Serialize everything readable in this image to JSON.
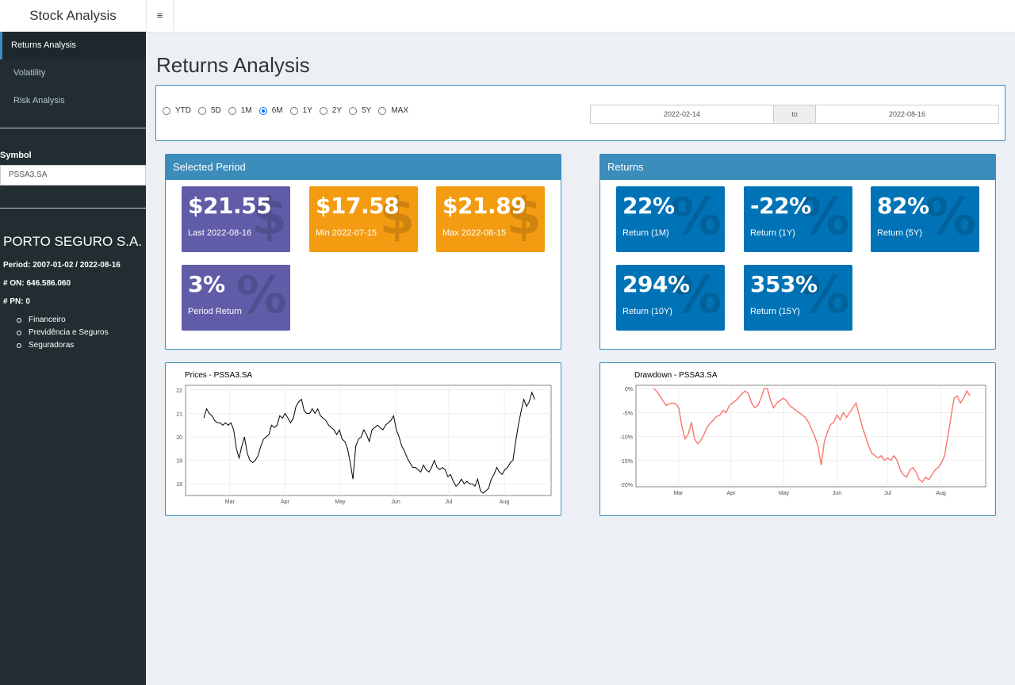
{
  "header": {
    "title": "Stock Analysis",
    "menu_icon": "≡"
  },
  "sidebar": {
    "items": [
      {
        "label": "Returns Analysis",
        "active": true
      },
      {
        "label": "Volatility",
        "active": false
      },
      {
        "label": "Risk Analysis",
        "active": false
      }
    ],
    "symbol_label": "Symbol",
    "symbol_value": "PSSA3.SA",
    "company": "PORTO SEGURO S.A.",
    "period": "Period: 2007-01-02 / 2022-08-16",
    "on": "# ON: 646.586.060",
    "pn": "# PN: 0",
    "sectors": [
      "Financeiro",
      "Previdência e Seguros",
      "Seguradoras"
    ]
  },
  "page_title": "Returns Analysis",
  "filters": {
    "periods": [
      "YTD",
      "5D",
      "1M",
      "6M",
      "1Y",
      "2Y",
      "5Y",
      "MAX"
    ],
    "selected": "6M",
    "date_start": "2022-02-14",
    "date_sep": "to",
    "date_end": "2022-08-16"
  },
  "selected_period": {
    "title": "Selected Period",
    "boxes": [
      {
        "value": "$21.55",
        "label": "Last 2022-08-16",
        "color": "#605ca8",
        "icon": "dollar-icon"
      },
      {
        "value": "$17.58",
        "label": "Min 2022-07-15",
        "color": "#f39c12",
        "icon": "dollar-icon"
      },
      {
        "value": "$21.89",
        "label": "Max 2022-08-15",
        "color": "#f39c12",
        "icon": "dollar-icon"
      },
      {
        "value": "3%",
        "label": "Period Return",
        "color": "#605ca8",
        "icon": "percent-icon"
      }
    ]
  },
  "returns": {
    "title": "Returns",
    "boxes": [
      {
        "value": "22%",
        "label": "Return (1M)",
        "color": "#0073b7",
        "icon": "percent-icon"
      },
      {
        "value": "-22%",
        "label": "Return (1Y)",
        "color": "#0073b7",
        "icon": "percent-icon"
      },
      {
        "value": "82%",
        "label": "Return (5Y)",
        "color": "#0073b7",
        "icon": "percent-icon"
      },
      {
        "value": "294%",
        "label": "Return (10Y)",
        "color": "#0073b7",
        "icon": "percent-icon"
      },
      {
        "value": "353%",
        "label": "Return (15Y)",
        "color": "#0073b7",
        "icon": "percent-icon"
      }
    ]
  },
  "chart_data": [
    {
      "type": "line",
      "title": "Prices - PSSA3.SA",
      "xlabel": "",
      "ylabel": "",
      "x_ticks": [
        "Mar",
        "Apr",
        "May",
        "Jun",
        "Jul",
        "Aug"
      ],
      "y_ticks": [
        "18",
        "19",
        "20",
        "21",
        "22"
      ],
      "ylim": [
        17.5,
        22.2
      ],
      "color": "#000000",
      "series": [
        {
          "values": [
            20.8,
            21.2,
            21.0,
            20.9,
            20.7,
            20.6,
            20.6,
            20.5,
            20.6,
            20.5,
            20.6,
            20.3,
            19.5,
            19.1,
            19.6,
            20.0,
            19.3,
            19.0,
            18.9,
            19.0,
            19.2,
            19.6,
            19.9,
            20.0,
            20.1,
            20.5,
            20.4,
            20.5,
            20.9,
            20.8,
            21.0,
            20.8,
            20.6,
            20.8,
            21.3,
            21.5,
            21.6,
            21.1,
            21.0,
            21.0,
            21.2,
            21.0,
            21.2,
            20.9,
            20.8,
            20.7,
            20.5,
            20.4,
            20.3,
            20.1,
            20.3,
            19.9,
            19.8,
            19.5,
            18.9,
            18.2,
            19.6,
            19.9,
            20.0,
            20.3,
            20.1,
            19.8,
            20.3,
            20.4,
            20.5,
            20.4,
            20.3,
            20.5,
            20.6,
            20.7,
            20.9,
            20.3,
            20.0,
            19.6,
            19.4,
            19.1,
            18.9,
            18.7,
            18.7,
            18.6,
            18.5,
            18.8,
            18.6,
            18.5,
            18.7,
            19.0,
            18.7,
            18.6,
            18.7,
            18.6,
            18.3,
            18.4,
            18.1,
            17.9,
            18.0,
            18.2,
            18.0,
            18.1,
            18.0,
            18.0,
            17.9,
            18.2,
            17.7,
            17.6,
            17.7,
            17.8,
            18.2,
            18.4,
            18.7,
            18.5,
            18.4,
            18.6,
            18.7,
            18.9,
            19.0,
            19.8,
            20.5,
            21.1,
            21.6,
            21.3,
            21.5,
            21.9,
            21.6
          ]
        }
      ]
    },
    {
      "type": "line",
      "title": "Drawdown - PSSA3.SA",
      "xlabel": "",
      "ylabel": "",
      "x_ticks": [
        "Mar",
        "Apr",
        "May",
        "Jun",
        "Jul",
        "Aug"
      ],
      "y_ticks": [
        "0%",
        "-5%",
        "-10%",
        "-15%",
        "-20%"
      ],
      "ylim": [
        -20.5,
        0.7
      ],
      "color": "#f8766d",
      "series": [
        {
          "values": [
            0,
            -0.5,
            -1.5,
            -2.5,
            -3.5,
            -3.2,
            -3.0,
            -3.2,
            -4.0,
            -8.0,
            -10.5,
            -9.5,
            -7.0,
            -10.5,
            -11.5,
            -10.8,
            -9.5,
            -8.0,
            -7.2,
            -6.5,
            -5.8,
            -5.5,
            -4.5,
            -5.0,
            -3.5,
            -3.0,
            -2.5,
            -1.8,
            -1.0,
            -0.5,
            -1.0,
            -3.0,
            -4.0,
            -3.5,
            -2.0,
            0,
            0,
            -2.5,
            -4.0,
            -3.0,
            -2.5,
            -2.0,
            -2.5,
            -3.5,
            -4.0,
            -4.5,
            -5.0,
            -5.5,
            -6.0,
            -7.0,
            -8.5,
            -10.0,
            -12.0,
            -16.0,
            -11.0,
            -9.0,
            -7.5,
            -7.0,
            -5.5,
            -6.5,
            -5.0,
            -6.0,
            -5.0,
            -4.0,
            -3.0,
            -5.5,
            -8.0,
            -10.0,
            -12.0,
            -13.5,
            -14.0,
            -14.5,
            -14.0,
            -15.0,
            -14.5,
            -15.0,
            -14.0,
            -15.0,
            -17.0,
            -18.0,
            -18.5,
            -17.0,
            -16.5,
            -17.5,
            -19.0,
            -19.5,
            -18.5,
            -19.0,
            -18.0,
            -17.0,
            -16.5,
            -15.5,
            -14.0,
            -10.0,
            -6.0,
            -2.0,
            -1.5,
            -3.0,
            -2.0,
            -0.5,
            -1.5
          ]
        }
      ]
    }
  ]
}
